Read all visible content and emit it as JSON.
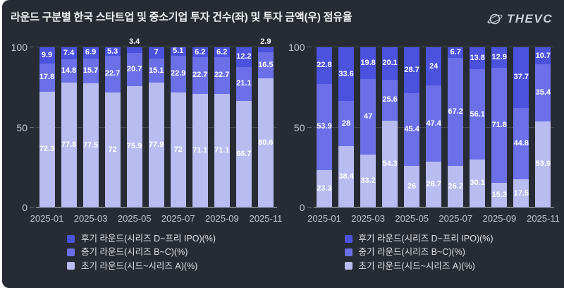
{
  "header": {
    "title": "라운드 구분별 한국 스타트업 및 중소기업 투자 건수(좌) 및 투자 금액(우) 점유율",
    "logo_text": "THEVC"
  },
  "colors": {
    "background": "#272b33",
    "late": "#4a52de",
    "mid": "#6b70e8",
    "early": "#b8bcf0",
    "axis_text": "#c6c9d0",
    "grid": "#474b54",
    "baseline": "#b9bcc3",
    "value_label": "#ffffff"
  },
  "legend": [
    {
      "label": "후기 라운드(시리즈 D~프리 IPO)(%)",
      "color_key": "late"
    },
    {
      "label": "중기 라운드(시리즈 B~C)(%)",
      "color_key": "mid"
    },
    {
      "label": "초기 라운드(시드~시리즈 A)(%)",
      "color_key": "early"
    }
  ],
  "chart_data": [
    {
      "type": "bar",
      "stacked": true,
      "label": "투자 건수(좌)",
      "x": [
        "2025-01",
        "2025-02",
        "2025-03",
        "2025-04",
        "2025-05",
        "2025-06",
        "2025-07",
        "2025-08",
        "2025-09",
        "2025-10",
        "2025-11"
      ],
      "x_tick_indices": [
        0,
        2,
        4,
        6,
        8,
        10
      ],
      "x_tick_labels": [
        "2025-01",
        "2025-03",
        "2025-05",
        "2025-07",
        "2025-09",
        "2025-11"
      ],
      "ylim": [
        0,
        100
      ],
      "yticks": [
        0,
        50,
        100
      ],
      "grid": true,
      "legend_position": "bottom-left",
      "stack_order": "bottom-to-top",
      "series": [
        {
          "name": "초기 라운드(시드~시리즈 A)(%)",
          "color_key": "early",
          "values": [
            72.3,
            77.8,
            77.5,
            72,
            75.9,
            77.9,
            72,
            71.1,
            71.1,
            66.7,
            80.6
          ]
        },
        {
          "name": "중기 라운드(시리즈 B~C)(%)",
          "color_key": "mid",
          "values": [
            17.8,
            14.8,
            15.7,
            22.7,
            20.7,
            15.1,
            22.9,
            22.7,
            22.7,
            21.1,
            16.5
          ]
        },
        {
          "name": "후기 라운드(시리즈 D~프리 IPO)(%)",
          "color_key": "late",
          "values": [
            9.9,
            7.4,
            6.9,
            5.3,
            3.4,
            7,
            5.1,
            6.2,
            6.2,
            12.2,
            2.9
          ]
        }
      ]
    },
    {
      "type": "bar",
      "stacked": true,
      "label": "투자 금액(우)",
      "x": [
        "2025-01",
        "2025-02",
        "2025-03",
        "2025-04",
        "2025-05",
        "2025-06",
        "2025-07",
        "2025-08",
        "2025-09",
        "2025-10",
        "2025-11"
      ],
      "x_tick_indices": [
        0,
        2,
        4,
        6,
        8,
        10
      ],
      "x_tick_labels": [
        "2025-01",
        "2025-03",
        "2025-05",
        "2025-07",
        "2025-09",
        "2025-11"
      ],
      "ylim": [
        0,
        100
      ],
      "yticks": [
        0,
        50,
        100
      ],
      "grid": true,
      "legend_position": "bottom-left",
      "stack_order": "bottom-to-top",
      "series": [
        {
          "name": "초기 라운드(시드~시리즈 A)(%)",
          "color_key": "early",
          "values": [
            23.3,
            38.4,
            33.2,
            54.3,
            26,
            28.7,
            26.2,
            30.1,
            15.3,
            17.5,
            53.9
          ]
        },
        {
          "name": "중기 라운드(시리즈 B~C)(%)",
          "color_key": "mid",
          "values": [
            53.9,
            28,
            47,
            25.6,
            45.4,
            47.4,
            67.2,
            56.1,
            71.8,
            44.8,
            35.4
          ]
        },
        {
          "name": "후기 라운드(시리즈 D~프리 IPO)(%)",
          "color_key": "late",
          "values": [
            22.8,
            33.6,
            19.8,
            20.1,
            28.7,
            24,
            6.7,
            13.8,
            12.9,
            37.7,
            10.7
          ]
        }
      ]
    }
  ]
}
